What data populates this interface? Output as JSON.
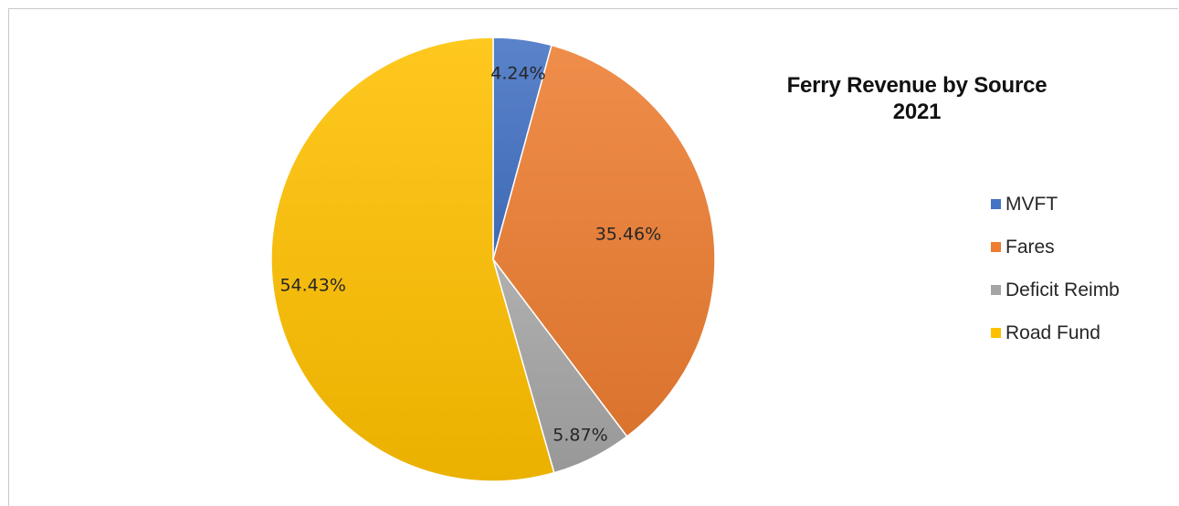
{
  "chart_data": {
    "type": "pie",
    "title": "Ferry Revenue by Source",
    "subtitle": "2021",
    "categories": [
      "MVFT",
      "Fares",
      "Deficit Reimb",
      "Road Fund"
    ],
    "values": [
      4.24,
      35.46,
      5.87,
      54.43
    ],
    "data_labels": [
      "4.24%",
      "35.46%",
      "5.87%",
      "54.43%"
    ],
    "colors": [
      "#4472C4",
      "#ED7D31",
      "#A5A5A5",
      "#FFC000"
    ],
    "start_angle_deg": 0,
    "direction": "clockwise",
    "legend_position": "right"
  }
}
